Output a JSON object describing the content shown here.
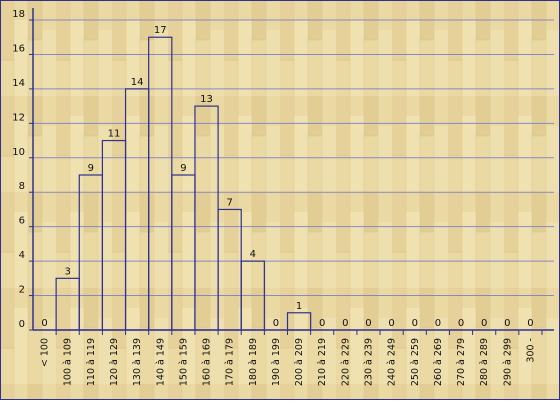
{
  "chart_data": {
    "type": "bar",
    "title": "",
    "xlabel": "",
    "ylabel": "",
    "ylim": [
      0,
      18
    ],
    "yticks": [
      0,
      2,
      4,
      6,
      8,
      10,
      12,
      14,
      16,
      18
    ],
    "grid": true,
    "legend": "none",
    "categories": [
      "< 100",
      "100 à 109",
      "110 à 119",
      "120 à 129",
      "130 à 139",
      "140 à 149",
      "150 à 159",
      "160 à 169",
      "170 à 179",
      "180 à 189",
      "190 à 199",
      "200 à 209",
      "210 à 219",
      "220 à 229",
      "230 à 239",
      "240 à 249",
      "250 à 259",
      "260 à 269",
      "270 à 279",
      "280 à 289",
      "290 à 299",
      "300 -"
    ],
    "values": [
      0,
      3,
      9,
      11,
      14,
      17,
      9,
      13,
      7,
      4,
      0,
      1,
      0,
      0,
      0,
      0,
      0,
      0,
      0,
      0,
      0,
      0
    ]
  },
  "colors": {
    "wood_base": "#ead9a3",
    "wood_dark": "#dcc68b",
    "wood_light": "#f3e8c0",
    "axis": "#303090",
    "grid": "#8080c8",
    "bar_stroke": "#303090",
    "text": "#101010"
  }
}
